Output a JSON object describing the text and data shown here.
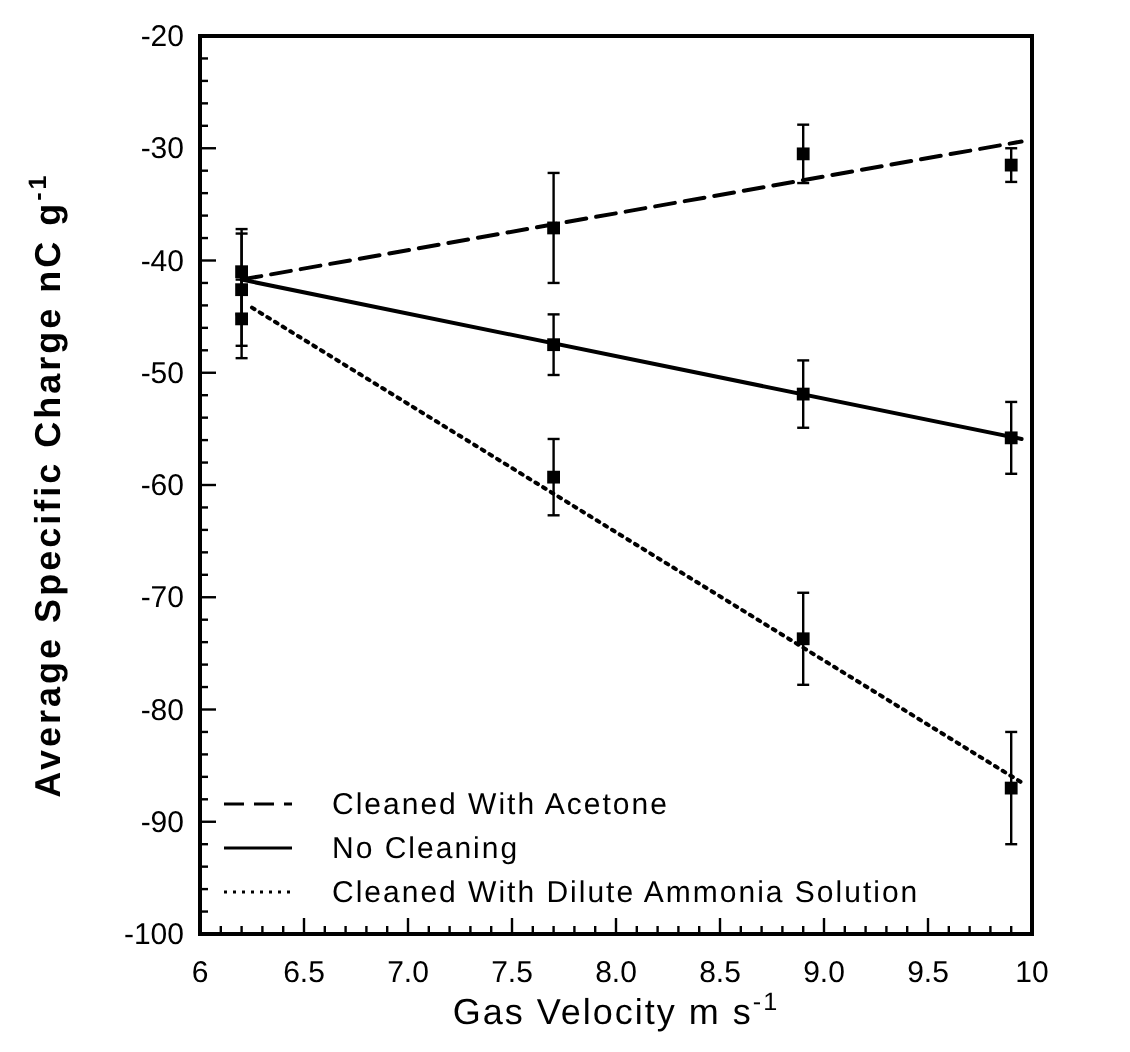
{
  "chart_data": {
    "type": "scatter",
    "xlabel": "Gas Velocity m s$^{-1}$",
    "ylabel": "Average Specific Charge nC g$^{-1}$",
    "xlim": [
      6,
      10
    ],
    "ylim": [
      -100,
      -20
    ],
    "xticks": [
      6,
      6.5,
      {
        "value": 7,
        "label": "7.0"
      },
      7.5,
      {
        "value": 8,
        "label": "8.0"
      },
      8.5,
      {
        "value": 9,
        "label": "9.0"
      },
      9.5,
      10,
      {
        "value": 6.1,
        "label": null
      },
      {
        "value": 6.2,
        "label": null
      },
      {
        "value": 6.3,
        "label": null
      },
      {
        "value": 6.4,
        "label": null
      },
      {
        "value": 6.6,
        "label": null
      },
      {
        "value": 6.7,
        "label": null
      },
      {
        "value": 6.8,
        "label": null
      },
      {
        "value": 6.9,
        "label": null
      },
      {
        "value": 7.1,
        "label": null
      },
      {
        "value": 7.2,
        "label": null
      },
      {
        "value": 7.3,
        "label": null
      },
      {
        "value": 7.4,
        "label": null
      },
      {
        "value": 7.6,
        "label": null
      },
      {
        "value": 7.7,
        "label": null
      },
      {
        "value": 7.8,
        "label": null
      },
      {
        "value": 7.9,
        "label": null
      },
      {
        "value": 8.1,
        "label": null
      },
      {
        "value": 8.2,
        "label": null
      },
      {
        "value": 8.3,
        "label": null
      },
      {
        "value": 8.4,
        "label": null
      },
      {
        "value": 8.6,
        "label": null
      },
      {
        "value": 8.7,
        "label": null
      },
      {
        "value": 8.8,
        "label": null
      },
      {
        "value": 8.9,
        "label": null
      },
      {
        "value": 9.1,
        "label": null
      },
      {
        "value": 9.2,
        "label": null
      },
      {
        "value": 9.3,
        "label": null
      },
      {
        "value": 9.4,
        "label": null
      },
      {
        "value": 9.6,
        "label": null
      },
      {
        "value": 9.7,
        "label": null
      },
      {
        "value": 9.8,
        "label": null
      },
      {
        "value": 9.9,
        "label": null
      }
    ],
    "yticks": [
      -100,
      -90,
      -80,
      -70,
      -60,
      -50,
      -40,
      -30,
      -20,
      {
        "value": -98,
        "label": null
      },
      {
        "value": -96,
        "label": null
      },
      {
        "value": -94,
        "label": null
      },
      {
        "value": -92,
        "label": null
      },
      {
        "value": -88,
        "label": null
      },
      {
        "value": -86,
        "label": null
      },
      {
        "value": -84,
        "label": null
      },
      {
        "value": -82,
        "label": null
      },
      {
        "value": -78,
        "label": null
      },
      {
        "value": -76,
        "label": null
      },
      {
        "value": -74,
        "label": null
      },
      {
        "value": -72,
        "label": null
      },
      {
        "value": -68,
        "label": null
      },
      {
        "value": -66,
        "label": null
      },
      {
        "value": -64,
        "label": null
      },
      {
        "value": -62,
        "label": null
      },
      {
        "value": -58,
        "label": null
      },
      {
        "value": -56,
        "label": null
      },
      {
        "value": -54,
        "label": null
      },
      {
        "value": -52,
        "label": null
      },
      {
        "value": -48,
        "label": null
      },
      {
        "value": -46,
        "label": null
      },
      {
        "value": -44,
        "label": null
      },
      {
        "value": -42,
        "label": null
      },
      {
        "value": -38,
        "label": null
      },
      {
        "value": -36,
        "label": null
      },
      {
        "value": -34,
        "label": null
      },
      {
        "value": -32,
        "label": null
      },
      {
        "value": -28,
        "label": null
      },
      {
        "value": -26,
        "label": null
      },
      {
        "value": -24,
        "label": null
      },
      {
        "value": -22,
        "label": null
      }
    ],
    "grid": false,
    "legend": "bottom left",
    "marker": "square",
    "series": [
      {
        "type": "line",
        "name": "Cleaned With Acetone",
        "color": "#000000",
        "line_style": "dashed",
        "marker": "none",
        "x": [
          6.2,
          9.95
        ],
        "values": [
          -41.7,
          -29.4
        ]
      },
      {
        "type": "line",
        "name": "No Cleaning",
        "color": "#000000",
        "line_style": "solid",
        "marker": "none",
        "x": [
          6.2,
          9.95
        ],
        "values": [
          -41.7,
          -55.9
        ]
      },
      {
        "type": "line",
        "name": "Cleaned With Dilute Ammonia Solution",
        "color": "#000000",
        "line_style": "dotted",
        "marker": "none",
        "x": [
          6.25,
          9.95
        ],
        "values": [
          -44.2,
          -86.5
        ]
      },
      {
        "color": "#000000",
        "x": [
          6.2,
          7.7,
          8.9,
          9.9
        ],
        "values": [
          -41,
          -37.1,
          -30.5,
          -31.5
        ],
        "errors": [
          3.8,
          4.9,
          2.6,
          1.5
        ]
      },
      {
        "color": "#000000",
        "x": [
          6.2,
          7.7,
          8.9,
          9.9
        ],
        "values": [
          -42.6,
          -47.5,
          -51.9,
          -55.8
        ],
        "errors": [
          5,
          2.7,
          3,
          3.2
        ]
      },
      {
        "color": "#000000",
        "x": [
          6.2,
          7.7,
          8.9,
          9.9
        ],
        "values": [
          -45.2,
          -59.3,
          -73.7,
          -87
        ],
        "errors": [
          3.5,
          3.4,
          4.1,
          5
        ]
      }
    ]
  }
}
